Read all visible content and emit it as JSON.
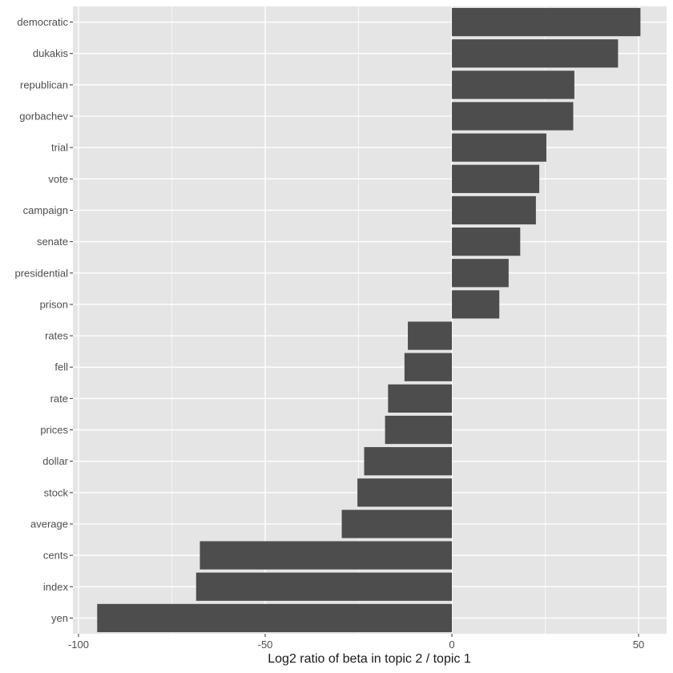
{
  "chart_data": {
    "type": "bar",
    "orientation": "horizontal",
    "categories": [
      "democratic",
      "dukakis",
      "republican",
      "gorbachev",
      "trial",
      "vote",
      "campaign",
      "senate",
      "presidential",
      "prison",
      "rates",
      "fell",
      "rate",
      "prices",
      "dollar",
      "stock",
      "average",
      "cents",
      "index",
      "yen"
    ],
    "values": [
      50.5,
      44.5,
      32.8,
      32.5,
      25.3,
      23.4,
      22.5,
      18.3,
      15.2,
      12.7,
      -11.8,
      -12.7,
      -17.1,
      -17.9,
      -23.5,
      -25.3,
      -29.5,
      -67.5,
      -68.5,
      -95.0
    ],
    "title": "",
    "xlabel": "Log2 ratio of beta in topic 2 / topic 1",
    "ylabel": "",
    "xlim": [
      -101.5,
      57.5
    ],
    "xticks": [
      -100,
      -50,
      0,
      50
    ],
    "xtick_labels": [
      "-100",
      "-50",
      "0",
      "50"
    ],
    "grid": true,
    "colors": {
      "bar": "#4d4d4d",
      "panel": "#e5e5e5",
      "grid": "#ffffff",
      "tick_text": "#4d4d4d",
      "axis_title": "#1a1a1a"
    }
  }
}
